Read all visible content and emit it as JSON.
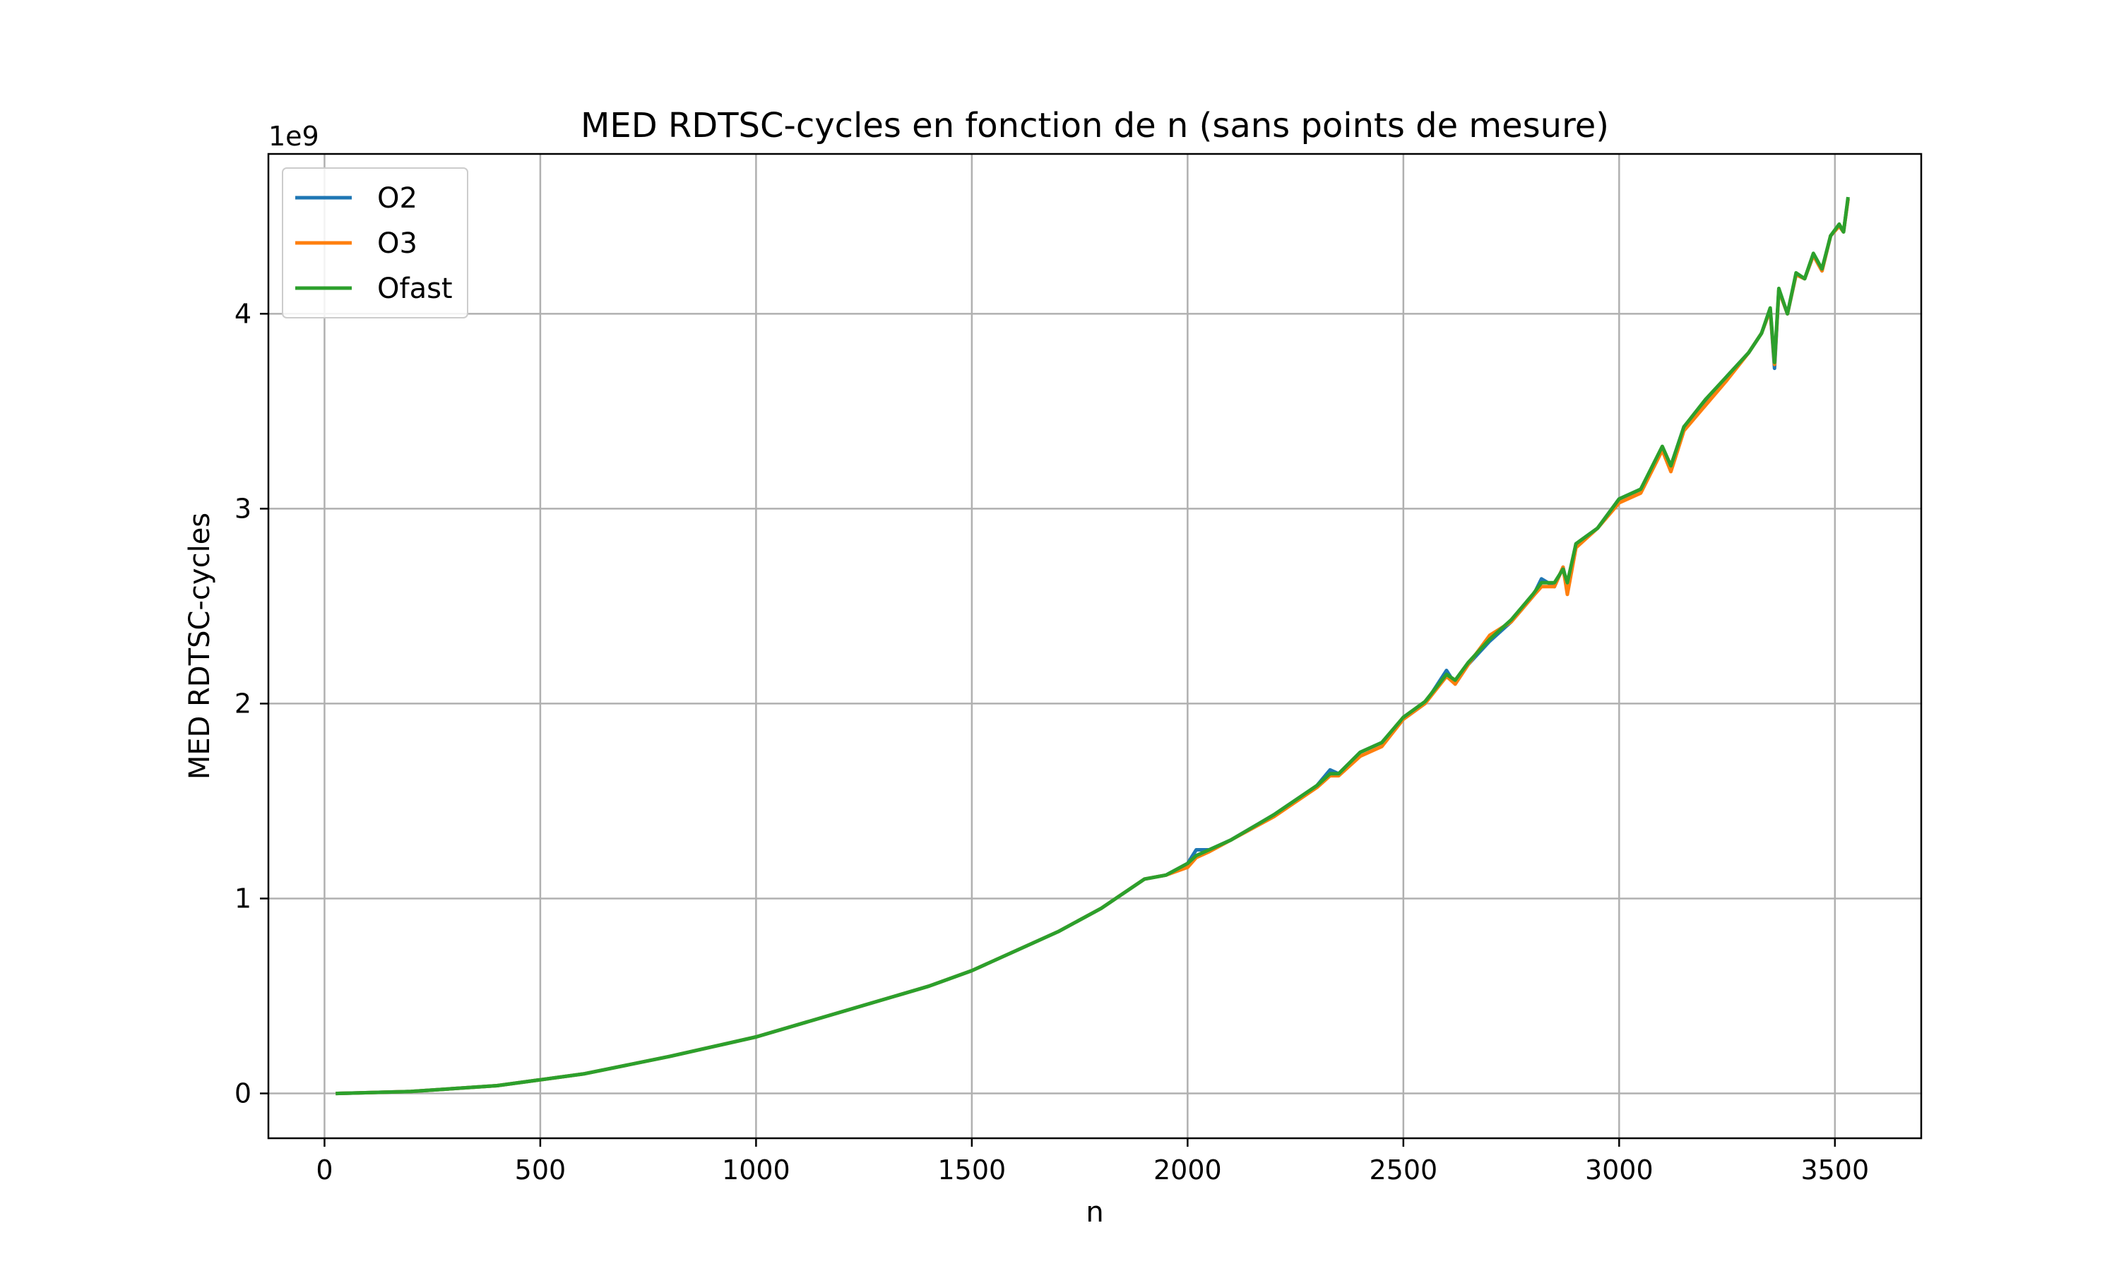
{
  "chart_data": {
    "type": "line",
    "title": "MED RDTSC-cycles en fonction de n (sans points de mesure)",
    "xlabel": "n",
    "ylabel": "MED RDTSC-cycles",
    "y_offset_label": "1e9",
    "xlim": [
      -130,
      3700
    ],
    "ylim": [
      -0.23,
      4.82
    ],
    "x_ticks": [
      0,
      500,
      1000,
      1500,
      2000,
      2500,
      3000,
      3500
    ],
    "y_ticks": [
      0,
      1,
      2,
      3,
      4
    ],
    "grid": true,
    "legend_position": "upper-left",
    "y_unit_scale": "1e9",
    "series": [
      {
        "name": "O2",
        "color": "#1f77b4",
        "points": [
          [
            30,
            0.0
          ],
          [
            200,
            0.01
          ],
          [
            400,
            0.04
          ],
          [
            600,
            0.1
          ],
          [
            800,
            0.19
          ],
          [
            1000,
            0.29
          ],
          [
            1200,
            0.42
          ],
          [
            1400,
            0.55
          ],
          [
            1500,
            0.63
          ],
          [
            1600,
            0.73
          ],
          [
            1700,
            0.83
          ],
          [
            1800,
            0.95
          ],
          [
            1900,
            1.1
          ],
          [
            1950,
            1.12
          ],
          [
            2000,
            1.18
          ],
          [
            2020,
            1.25
          ],
          [
            2050,
            1.25
          ],
          [
            2100,
            1.3
          ],
          [
            2200,
            1.43
          ],
          [
            2300,
            1.58
          ],
          [
            2330,
            1.66
          ],
          [
            2350,
            1.64
          ],
          [
            2400,
            1.75
          ],
          [
            2450,
            1.8
          ],
          [
            2500,
            1.92
          ],
          [
            2550,
            2.0
          ],
          [
            2600,
            2.17
          ],
          [
            2620,
            2.1
          ],
          [
            2650,
            2.2
          ],
          [
            2700,
            2.32
          ],
          [
            2750,
            2.42
          ],
          [
            2800,
            2.55
          ],
          [
            2820,
            2.64
          ],
          [
            2850,
            2.6
          ],
          [
            2870,
            2.7
          ],
          [
            2880,
            2.6
          ],
          [
            2900,
            2.82
          ],
          [
            2950,
            2.9
          ],
          [
            3000,
            3.05
          ],
          [
            3050,
            3.1
          ],
          [
            3100,
            3.3
          ],
          [
            3120,
            3.22
          ],
          [
            3150,
            3.42
          ],
          [
            3200,
            3.55
          ],
          [
            3250,
            3.68
          ],
          [
            3300,
            3.8
          ],
          [
            3330,
            3.9
          ],
          [
            3350,
            4.02
          ],
          [
            3360,
            3.72
          ],
          [
            3370,
            4.12
          ],
          [
            3390,
            4.0
          ],
          [
            3410,
            4.2
          ],
          [
            3430,
            4.18
          ],
          [
            3450,
            4.3
          ],
          [
            3470,
            4.22
          ],
          [
            3490,
            4.4
          ],
          [
            3510,
            4.45
          ],
          [
            3520,
            4.42
          ],
          [
            3530,
            4.58
          ]
        ]
      },
      {
        "name": "O3",
        "color": "#ff7f0e",
        "points": [
          [
            30,
            0.0
          ],
          [
            200,
            0.01
          ],
          [
            400,
            0.04
          ],
          [
            600,
            0.1
          ],
          [
            800,
            0.19
          ],
          [
            1000,
            0.29
          ],
          [
            1200,
            0.42
          ],
          [
            1400,
            0.55
          ],
          [
            1500,
            0.63
          ],
          [
            1600,
            0.73
          ],
          [
            1700,
            0.83
          ],
          [
            1800,
            0.95
          ],
          [
            1900,
            1.1
          ],
          [
            1950,
            1.12
          ],
          [
            2000,
            1.16
          ],
          [
            2020,
            1.21
          ],
          [
            2050,
            1.24
          ],
          [
            2100,
            1.3
          ],
          [
            2200,
            1.42
          ],
          [
            2300,
            1.57
          ],
          [
            2330,
            1.63
          ],
          [
            2350,
            1.63
          ],
          [
            2400,
            1.73
          ],
          [
            2450,
            1.78
          ],
          [
            2500,
            1.92
          ],
          [
            2550,
            2.0
          ],
          [
            2600,
            2.14
          ],
          [
            2620,
            2.1
          ],
          [
            2650,
            2.2
          ],
          [
            2700,
            2.35
          ],
          [
            2750,
            2.42
          ],
          [
            2800,
            2.55
          ],
          [
            2820,
            2.6
          ],
          [
            2850,
            2.6
          ],
          [
            2870,
            2.7
          ],
          [
            2880,
            2.56
          ],
          [
            2900,
            2.8
          ],
          [
            2950,
            2.9
          ],
          [
            3000,
            3.03
          ],
          [
            3050,
            3.08
          ],
          [
            3100,
            3.3
          ],
          [
            3120,
            3.19
          ],
          [
            3150,
            3.4
          ],
          [
            3200,
            3.53
          ],
          [
            3250,
            3.66
          ],
          [
            3300,
            3.8
          ],
          [
            3330,
            3.9
          ],
          [
            3350,
            4.02
          ],
          [
            3360,
            3.74
          ],
          [
            3370,
            4.12
          ],
          [
            3390,
            4.0
          ],
          [
            3410,
            4.2
          ],
          [
            3430,
            4.18
          ],
          [
            3450,
            4.3
          ],
          [
            3470,
            4.22
          ],
          [
            3490,
            4.4
          ],
          [
            3510,
            4.45
          ],
          [
            3520,
            4.42
          ],
          [
            3530,
            4.58
          ]
        ]
      },
      {
        "name": "Ofast",
        "color": "#2ca02c",
        "points": [
          [
            30,
            0.0
          ],
          [
            200,
            0.01
          ],
          [
            400,
            0.04
          ],
          [
            600,
            0.1
          ],
          [
            800,
            0.19
          ],
          [
            1000,
            0.29
          ],
          [
            1200,
            0.42
          ],
          [
            1400,
            0.55
          ],
          [
            1500,
            0.63
          ],
          [
            1600,
            0.73
          ],
          [
            1700,
            0.83
          ],
          [
            1800,
            0.95
          ],
          [
            1900,
            1.1
          ],
          [
            1950,
            1.12
          ],
          [
            2000,
            1.18
          ],
          [
            2020,
            1.22
          ],
          [
            2050,
            1.25
          ],
          [
            2100,
            1.3
          ],
          [
            2200,
            1.43
          ],
          [
            2300,
            1.58
          ],
          [
            2330,
            1.64
          ],
          [
            2350,
            1.64
          ],
          [
            2400,
            1.75
          ],
          [
            2450,
            1.8
          ],
          [
            2500,
            1.93
          ],
          [
            2550,
            2.01
          ],
          [
            2600,
            2.15
          ],
          [
            2620,
            2.12
          ],
          [
            2650,
            2.21
          ],
          [
            2700,
            2.33
          ],
          [
            2750,
            2.43
          ],
          [
            2800,
            2.56
          ],
          [
            2820,
            2.62
          ],
          [
            2850,
            2.62
          ],
          [
            2870,
            2.69
          ],
          [
            2880,
            2.62
          ],
          [
            2900,
            2.82
          ],
          [
            2950,
            2.9
          ],
          [
            3000,
            3.05
          ],
          [
            3050,
            3.1
          ],
          [
            3100,
            3.32
          ],
          [
            3120,
            3.22
          ],
          [
            3150,
            3.42
          ],
          [
            3200,
            3.56
          ],
          [
            3250,
            3.68
          ],
          [
            3300,
            3.8
          ],
          [
            3330,
            3.9
          ],
          [
            3350,
            4.03
          ],
          [
            3360,
            3.75
          ],
          [
            3370,
            4.13
          ],
          [
            3390,
            4.0
          ],
          [
            3410,
            4.21
          ],
          [
            3430,
            4.18
          ],
          [
            3450,
            4.31
          ],
          [
            3470,
            4.23
          ],
          [
            3490,
            4.4
          ],
          [
            3510,
            4.46
          ],
          [
            3520,
            4.42
          ],
          [
            3530,
            4.59
          ]
        ]
      }
    ]
  }
}
